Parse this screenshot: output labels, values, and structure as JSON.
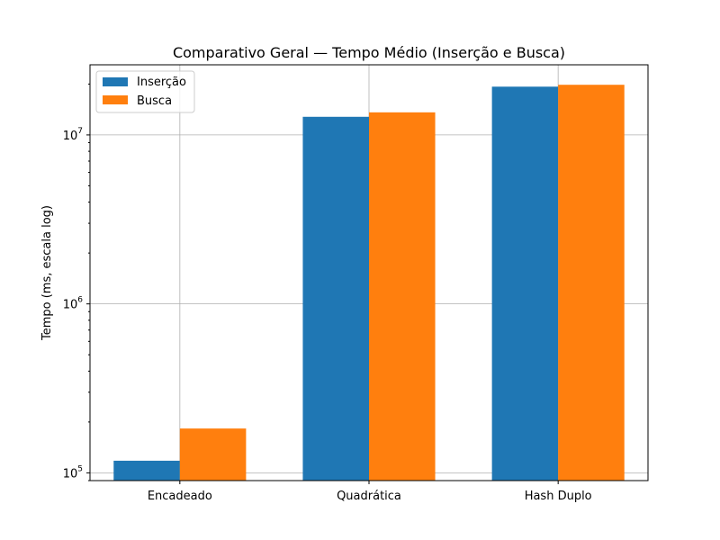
{
  "chart_data": {
    "type": "bar",
    "title": "Comparativo Geral — Tempo Médio (Inserção e Busca)",
    "xlabel": "",
    "ylabel": "Tempo (ms, escala log)",
    "yscale": "log",
    "ylim": [
      90000,
      26000000
    ],
    "yticks": [
      100000,
      1000000,
      10000000
    ],
    "categories": [
      "Encadeado",
      "Quadrática",
      "Hash Duplo"
    ],
    "series": [
      {
        "name": "Inserção",
        "color": "#1f77b4",
        "values": [
          118000,
          12800000,
          19300000
        ]
      },
      {
        "name": "Busca",
        "color": "#ff7f0e",
        "values": [
          183000,
          13600000,
          19800000
        ]
      }
    ],
    "grid": true,
    "legend_position": "top-left"
  }
}
